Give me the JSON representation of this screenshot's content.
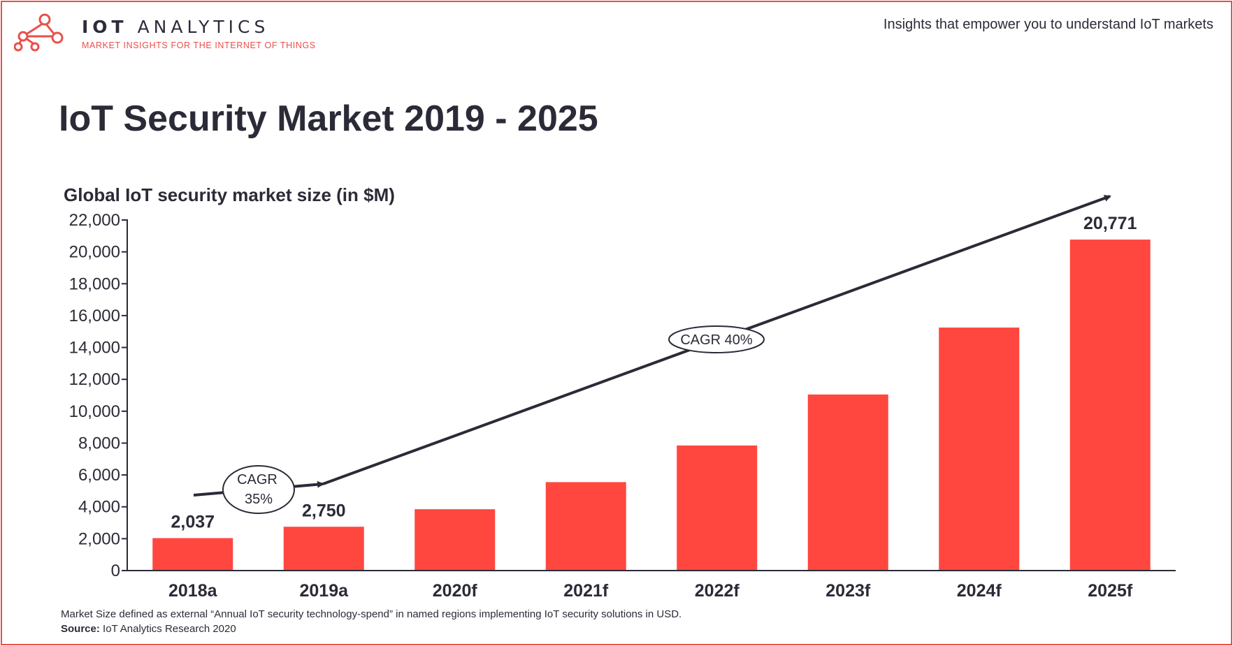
{
  "header": {
    "brand_bold": "IOT",
    "brand_light": "ANALYTICS",
    "brand_subtitle": "MARKET INSIGHTS FOR THE INTERNET OF THINGS",
    "tagline": "Insights that empower you to understand IoT markets",
    "logo_icon": "network-nodes-icon"
  },
  "colors": {
    "accent": "#e9504b",
    "bar": "#ff473f",
    "text": "#2b2b38"
  },
  "footer": {
    "footnote": "Market Size defined as external “Annual IoT security technology-spend” in named regions implementing IoT security solutions in USD.",
    "source_label": "Source:",
    "source_text": "IoT Analytics Research 2020"
  },
  "chart_data": {
    "type": "bar",
    "title": "IoT Security Market 2019 - 2025",
    "ylabel": "Global IoT security market size (in $M)",
    "xlabel": "",
    "ylim": [
      0,
      22000
    ],
    "yticks": [
      0,
      2000,
      4000,
      6000,
      8000,
      10000,
      12000,
      14000,
      16000,
      18000,
      20000,
      22000
    ],
    "ytick_labels": [
      "0",
      "2,000",
      "4,000",
      "6,000",
      "8,000",
      "10,000",
      "12,000",
      "14,000",
      "16,000",
      "18,000",
      "20,000",
      "22,000"
    ],
    "categories": [
      "2018a",
      "2019a",
      "2020f",
      "2021f",
      "2022f",
      "2023f",
      "2024f",
      "2025f"
    ],
    "values": [
      2037,
      2750,
      3850,
      5550,
      7850,
      11050,
      15250,
      20771
    ],
    "data_labels": [
      "2,037",
      "2,750",
      "",
      "",
      "",
      "",
      "",
      "20,771"
    ],
    "grid": false,
    "annotations": [
      {
        "text_lines": [
          "CAGR",
          "35%"
        ],
        "from": "2018a",
        "to": "2019a"
      },
      {
        "text_lines": [
          "CAGR 40%"
        ],
        "from": "2019a",
        "to": "2025f"
      }
    ]
  }
}
